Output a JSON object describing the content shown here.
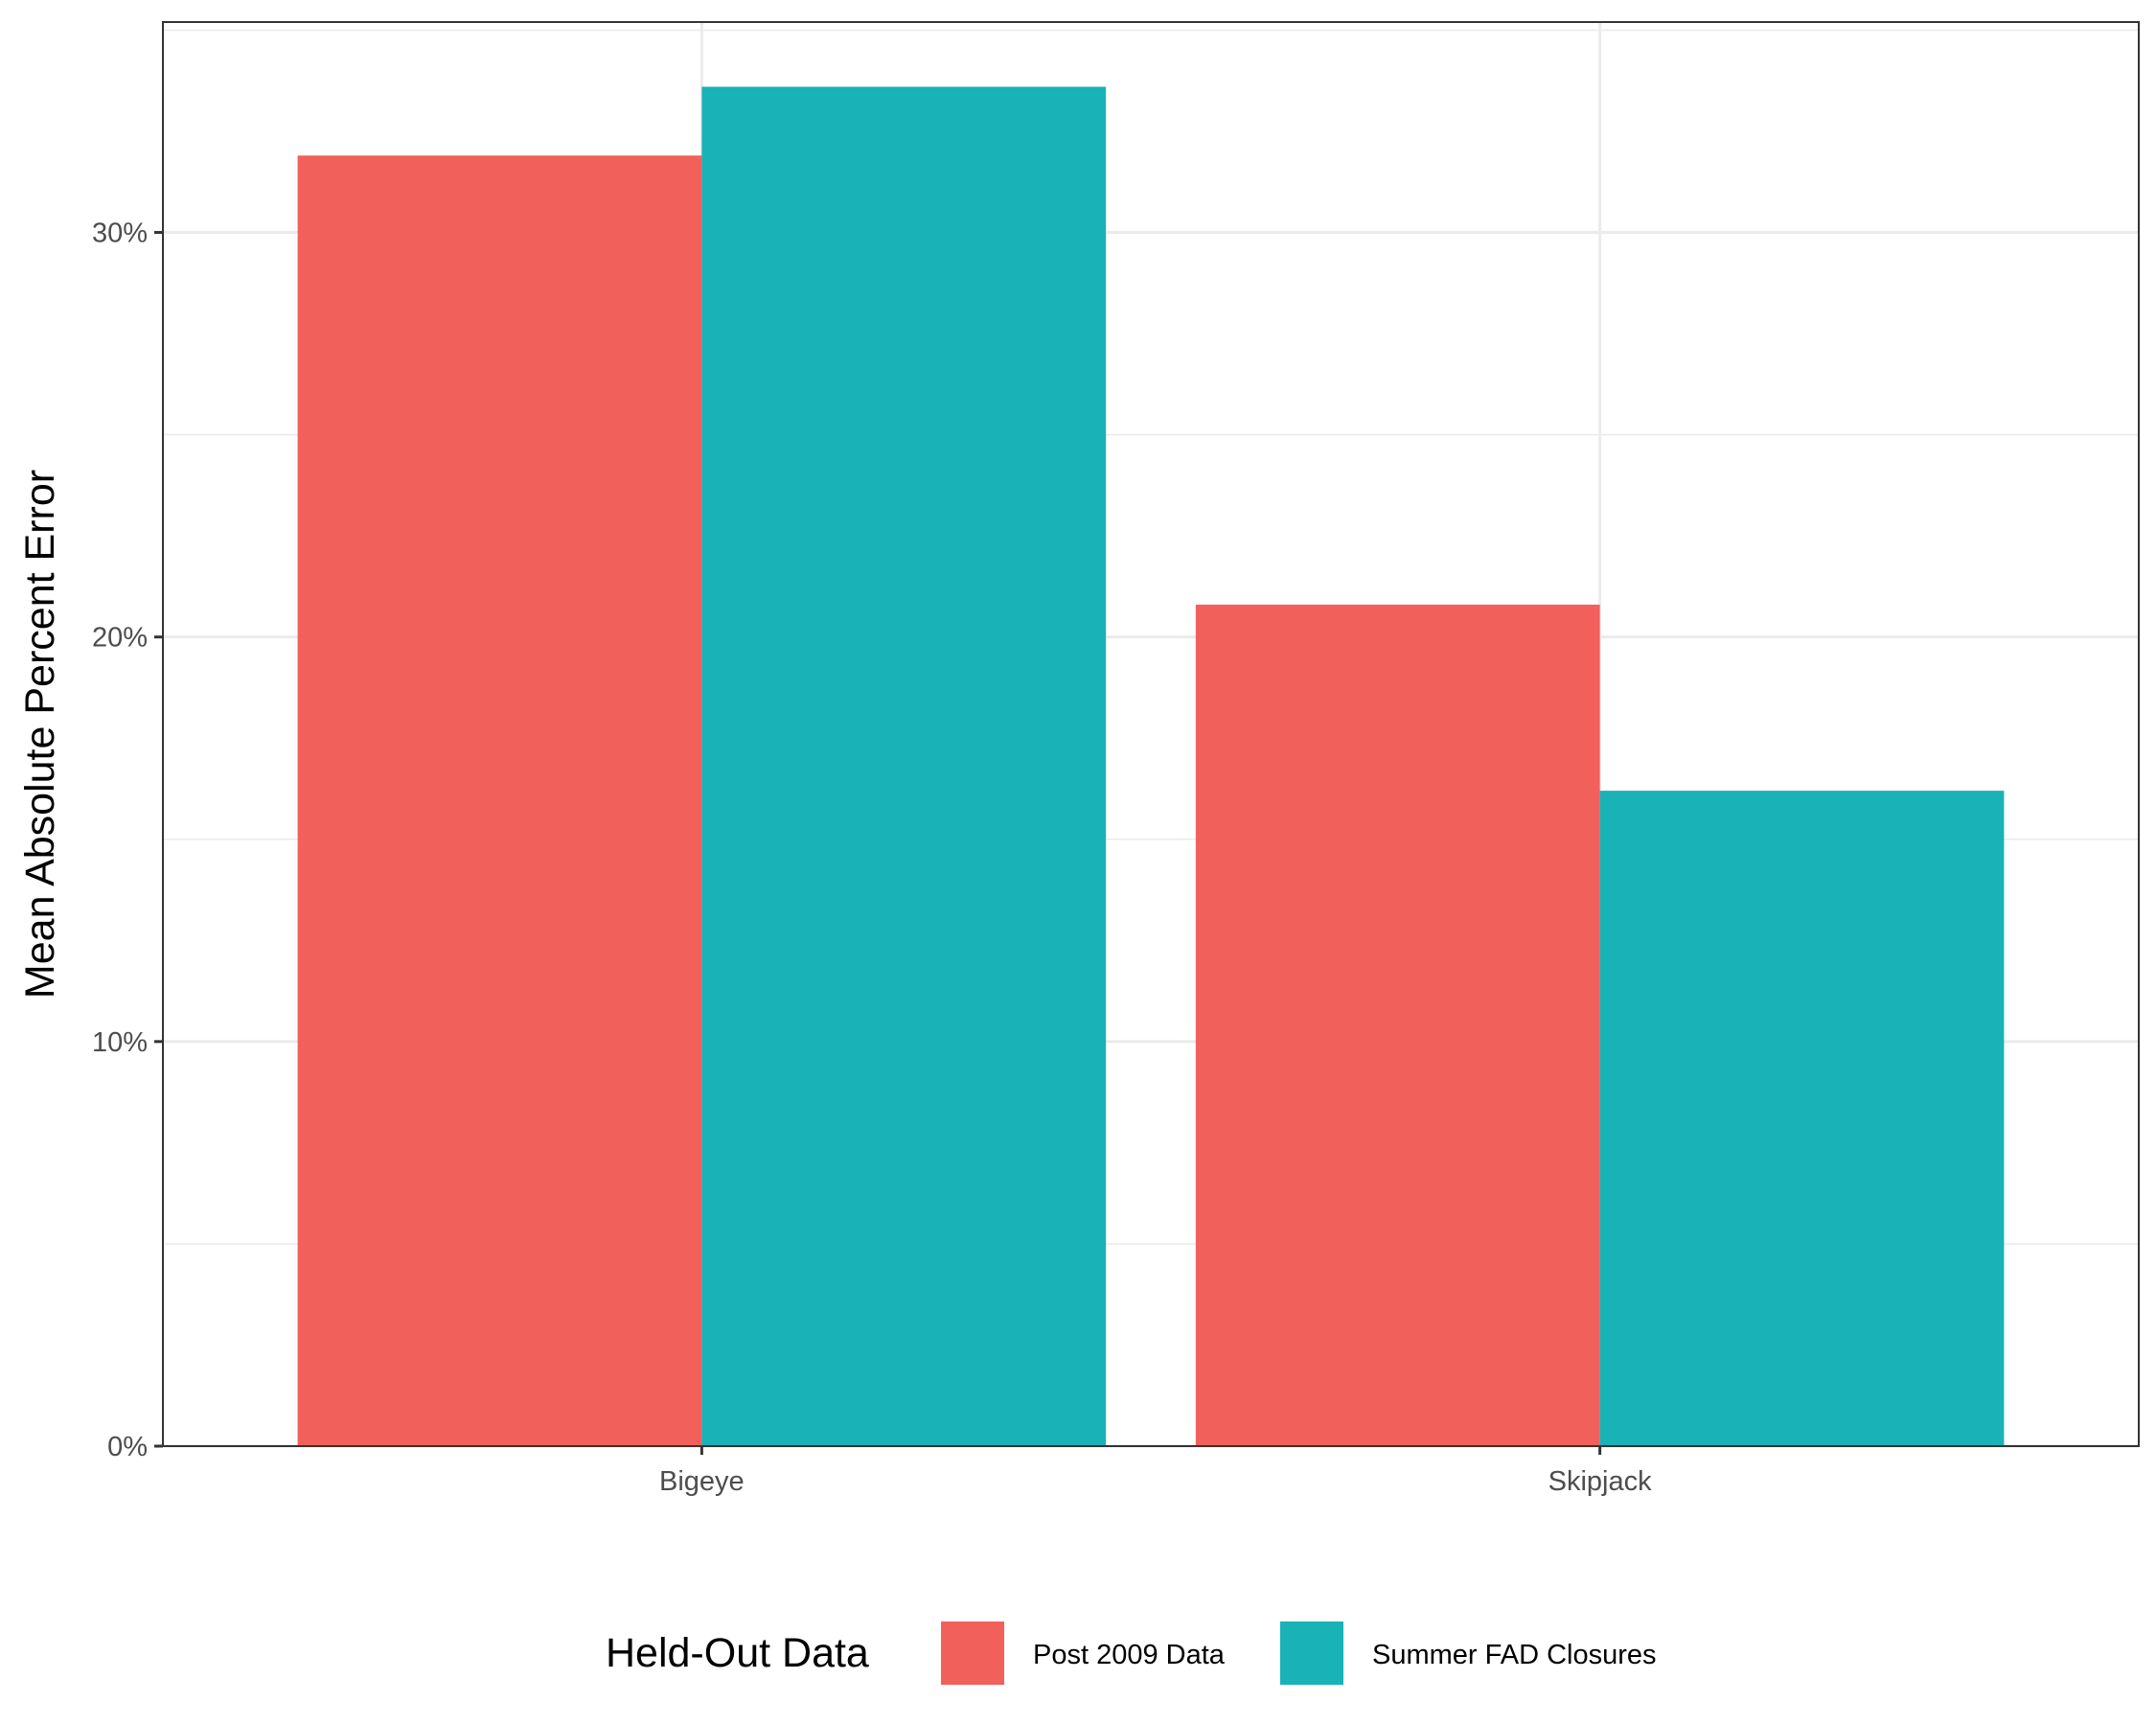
{
  "chart_data": {
    "type": "bar",
    "categories": [
      "Bigeye",
      "Skipjack"
    ],
    "series": [
      {
        "name": "Post 2009 Data",
        "color": "#F2605C",
        "values": [
          31.9,
          20.8
        ]
      },
      {
        "name": "Summer FAD Closures",
        "color": "#19B2B6",
        "values": [
          33.6,
          16.2
        ]
      }
    ],
    "title": "",
    "xlabel": "",
    "ylabel": "Mean Absolute Percent Error",
    "ylim": [
      0,
      35.2
    ],
    "yticks": [
      0,
      10,
      20,
      30
    ],
    "ytick_labels": [
      "0%",
      "10%",
      "20%",
      "30%"
    ],
    "legend": {
      "title": "Held-Out Data",
      "position": "bottom"
    },
    "grid": true
  }
}
